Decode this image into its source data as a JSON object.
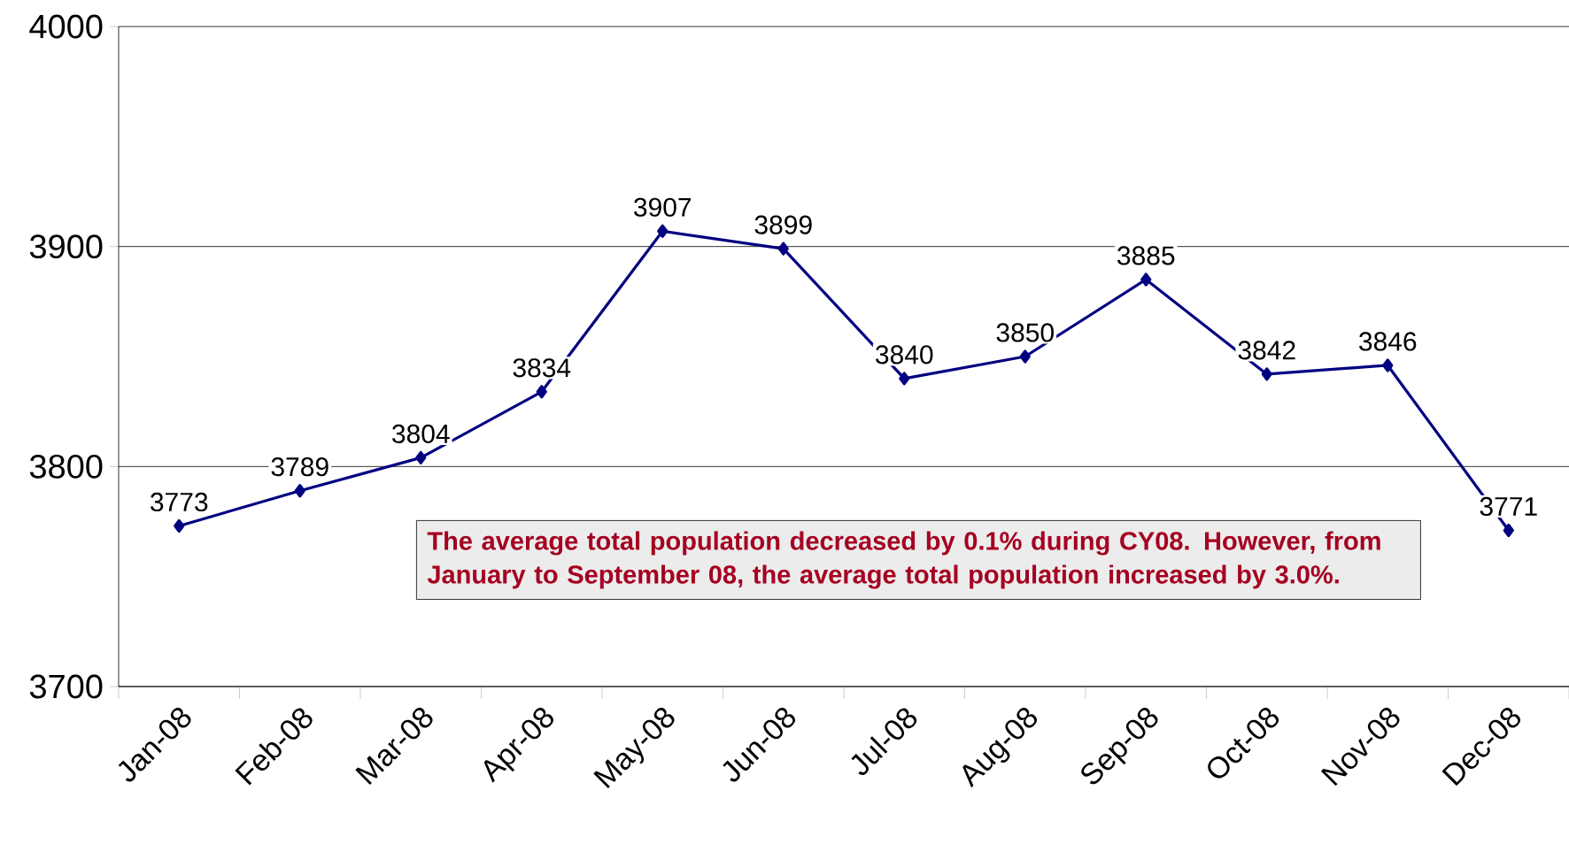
{
  "chart_data": {
    "type": "line",
    "categories": [
      "Jan-08",
      "Feb-08",
      "Mar-08",
      "Apr-08",
      "May-08",
      "Jun-08",
      "Jul-08",
      "Aug-08",
      "Sep-08",
      "Oct-08",
      "Nov-08",
      "Dec-08"
    ],
    "values": [
      3773,
      3789,
      3804,
      3834,
      3907,
      3899,
      3840,
      3850,
      3885,
      3842,
      3846,
      3771
    ],
    "color": "#000080",
    "ylim": [
      3700,
      4000
    ],
    "yticks": [
      3700,
      3800,
      3900,
      4000
    ],
    "grid": "y",
    "marker": "diamond",
    "line_style": "solid",
    "data_labels": true,
    "annotations": [
      "The average total population decreased by 0.1% during CY08. However, from January to September 08, the average total population increased by 3.0%."
    ]
  }
}
